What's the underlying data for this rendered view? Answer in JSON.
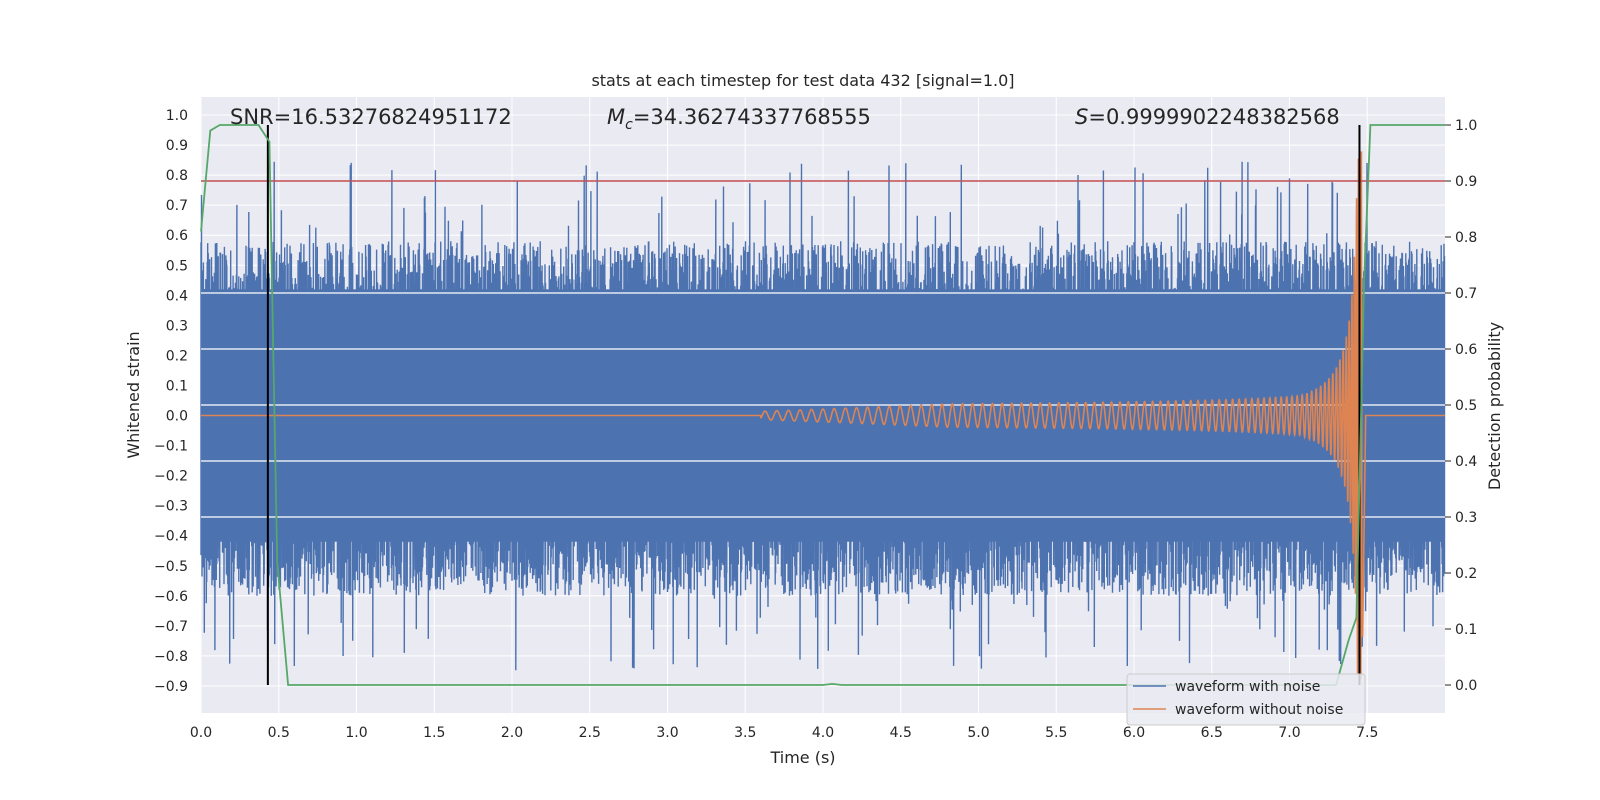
{
  "chart_data": {
    "type": "line",
    "title": "stats at each timestep for test data 432 [signal=1.0]",
    "xlabel": "Time (s)",
    "ylabel": "Whitened strain",
    "y2label": "Detection probability",
    "xlim": [
      0.0,
      8.0
    ],
    "ylim": [
      -0.99,
      1.06
    ],
    "y2lim": [
      -0.05,
      1.05
    ],
    "xticks": [
      "0.0",
      "0.5",
      "1.0",
      "1.5",
      "2.0",
      "2.5",
      "3.0",
      "3.5",
      "4.0",
      "4.5",
      "5.0",
      "5.5",
      "6.0",
      "6.5",
      "7.0",
      "7.5"
    ],
    "yticks": [
      "1.0",
      "0.9",
      "0.8",
      "0.7",
      "0.6",
      "0.5",
      "0.4",
      "0.3",
      "0.2",
      "0.1",
      "0.0",
      "−0.1",
      "−0.2",
      "−0.3",
      "−0.4",
      "−0.5",
      "−0.6",
      "−0.7",
      "−0.8",
      "−0.9"
    ],
    "y2ticks": [
      "1.0",
      "0.9",
      "0.8",
      "0.7",
      "0.6",
      "0.5",
      "0.4",
      "0.3",
      "0.2",
      "0.1",
      "0.0"
    ],
    "annotations": {
      "snr": "SNR=16.53276824951172",
      "mc_symbol": "M",
      "mc_sub": "c",
      "mc_value": "=34.36274337768555",
      "s_symbol": "S",
      "s_value": "=0.9999902248382568"
    },
    "threshold": {
      "y2": 0.9,
      "color": "#c44e52"
    },
    "vertical_markers": [
      {
        "x": 0.43,
        "y2_from": 0.0,
        "y2_to": 1.0
      },
      {
        "x": 7.45,
        "y2_from": 0.0,
        "y2_to": 1.0
      }
    ],
    "series": [
      {
        "name": "waveform with noise",
        "color": "#4c72b0",
        "axis": "left",
        "description_values": {
          "typical_range": [
            -0.5,
            0.5
          ],
          "max": 0.95,
          "min": -0.87
        }
      },
      {
        "name": "waveform without noise",
        "color": "#dd8452",
        "axis": "left",
        "description_values": {
          "start_time": 3.6,
          "merger_time": 7.47,
          "peak_amplitude": 0.88
        }
      },
      {
        "name": "detection probability",
        "color": "#55a868",
        "axis": "right",
        "x": [
          0.0,
          0.06,
          0.12,
          0.2,
          0.3,
          0.37,
          0.44,
          0.49,
          0.56,
          0.63,
          1.0,
          2.0,
          3.0,
          4.0,
          4.06,
          4.12,
          5.0,
          6.0,
          7.0,
          7.3,
          7.38,
          7.43,
          7.48,
          7.52,
          7.6,
          8.0
        ],
        "values": [
          0.81,
          0.99,
          1.0,
          1.0,
          1.0,
          1.0,
          0.97,
          0.22,
          0.0,
          0.0,
          0.0,
          0.0,
          0.0,
          0.0,
          0.002,
          0.0,
          0.0,
          0.0,
          0.0,
          0.0,
          0.08,
          0.12,
          0.72,
          1.0,
          1.0,
          1.0
        ]
      }
    ],
    "legend": {
      "placement": "lower-right",
      "entries": [
        "waveform with noise",
        "waveform without noise"
      ]
    },
    "colors": {
      "background": "#eaeaf2",
      "grid": "#ffffff",
      "marker": "#000000"
    }
  }
}
